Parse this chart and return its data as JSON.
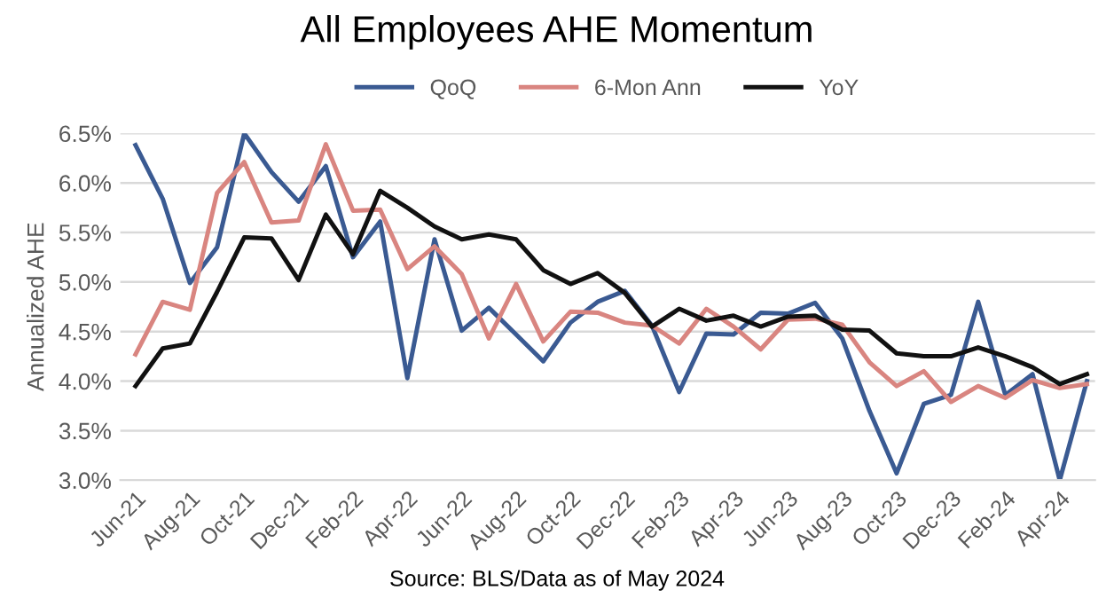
{
  "chart_data": {
    "type": "line",
    "title": "All Employees AHE Momentum",
    "ylabel": "Annualized AHE",
    "categories": [
      "Jun-21",
      null,
      "Aug-21",
      null,
      "Oct-21",
      null,
      "Dec-21",
      null,
      "Feb-22",
      null,
      "Apr-22",
      null,
      "Jun-22",
      null,
      "Aug-22",
      null,
      "Oct-22",
      null,
      "Dec-22",
      null,
      "Feb-23",
      null,
      "Apr-23",
      null,
      "Jun-23",
      null,
      "Aug-23",
      null,
      "Oct-23",
      null,
      "Dec-23",
      null,
      "Feb-24",
      null,
      "Apr-24",
      null
    ],
    "series": [
      {
        "name": "QoQ",
        "color": "#3a5a92",
        "values": [
          6.38,
          5.84,
          4.99,
          5.35,
          6.5,
          6.11,
          5.81,
          6.17,
          5.25,
          5.61,
          4.03,
          5.43,
          4.51,
          4.74,
          4.47,
          4.2,
          4.59,
          4.8,
          4.91,
          4.56,
          3.89,
          4.48,
          4.47,
          4.69,
          4.68,
          4.79,
          4.43,
          3.7,
          3.07,
          3.77,
          3.86,
          4.8,
          3.86,
          4.07,
          3.0,
          4.0
        ]
      },
      {
        "name": "6-Mon Ann",
        "color": "#d98580",
        "values": [
          4.27,
          4.8,
          4.72,
          5.9,
          6.21,
          5.6,
          5.62,
          6.39,
          5.72,
          5.73,
          5.13,
          5.36,
          5.08,
          4.43,
          4.98,
          4.4,
          4.7,
          4.69,
          4.59,
          4.56,
          4.38,
          4.73,
          4.55,
          4.32,
          4.62,
          4.63,
          4.57,
          4.19,
          3.95,
          4.1,
          3.79,
          3.95,
          3.83,
          4.01,
          3.93,
          3.97
        ]
      },
      {
        "name": "YoY",
        "color": "#111111",
        "values": [
          3.95,
          4.33,
          4.38,
          4.9,
          5.45,
          5.44,
          5.02,
          5.68,
          5.28,
          5.92,
          5.75,
          5.56,
          5.43,
          5.48,
          5.43,
          5.12,
          4.98,
          5.09,
          4.89,
          4.55,
          4.73,
          4.61,
          4.66,
          4.55,
          4.65,
          4.66,
          4.52,
          4.51,
          4.28,
          4.25,
          4.25,
          4.34,
          4.25,
          4.14,
          3.97,
          4.07
        ]
      }
    ],
    "ylim": [
      3.0,
      6.5
    ],
    "yticks": [
      {
        "value": 3.0,
        "label": "3.0%"
      },
      {
        "value": 3.5,
        "label": "3.5%"
      },
      {
        "value": 4.0,
        "label": "4.0%"
      },
      {
        "value": 4.5,
        "label": "4.5%"
      },
      {
        "value": 5.0,
        "label": "5.0%"
      },
      {
        "value": 5.5,
        "label": "5.5%"
      },
      {
        "value": 6.0,
        "label": "6.0%"
      },
      {
        "value": 6.5,
        "label": "6.5%"
      }
    ],
    "grid": "y",
    "legend": "top",
    "marker": "none",
    "line_style": "solid",
    "annotations": [
      "Source: BLS/Data as of May 2024"
    ]
  }
}
